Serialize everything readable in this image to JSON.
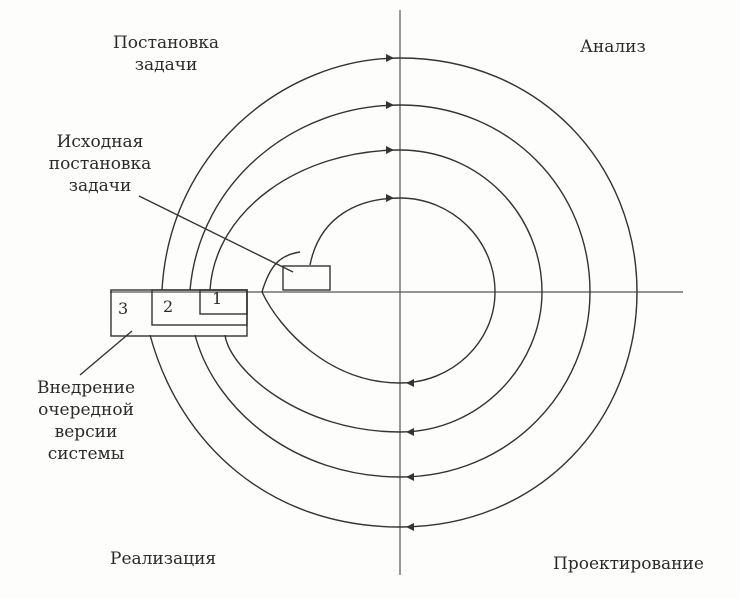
{
  "quadrants": {
    "top_left": [
      "Постановка",
      "задачи"
    ],
    "top_right": "Анализ",
    "bottom_left": "Реализация",
    "bottom_right": "Проектирование"
  },
  "callouts": {
    "initial": [
      "Исходная",
      "постановка",
      "задачи"
    ],
    "deploy": [
      "Внедрение",
      "очередной",
      "версии",
      "системы"
    ]
  },
  "boxes": {
    "one": "1",
    "two": "2",
    "three": "3"
  }
}
